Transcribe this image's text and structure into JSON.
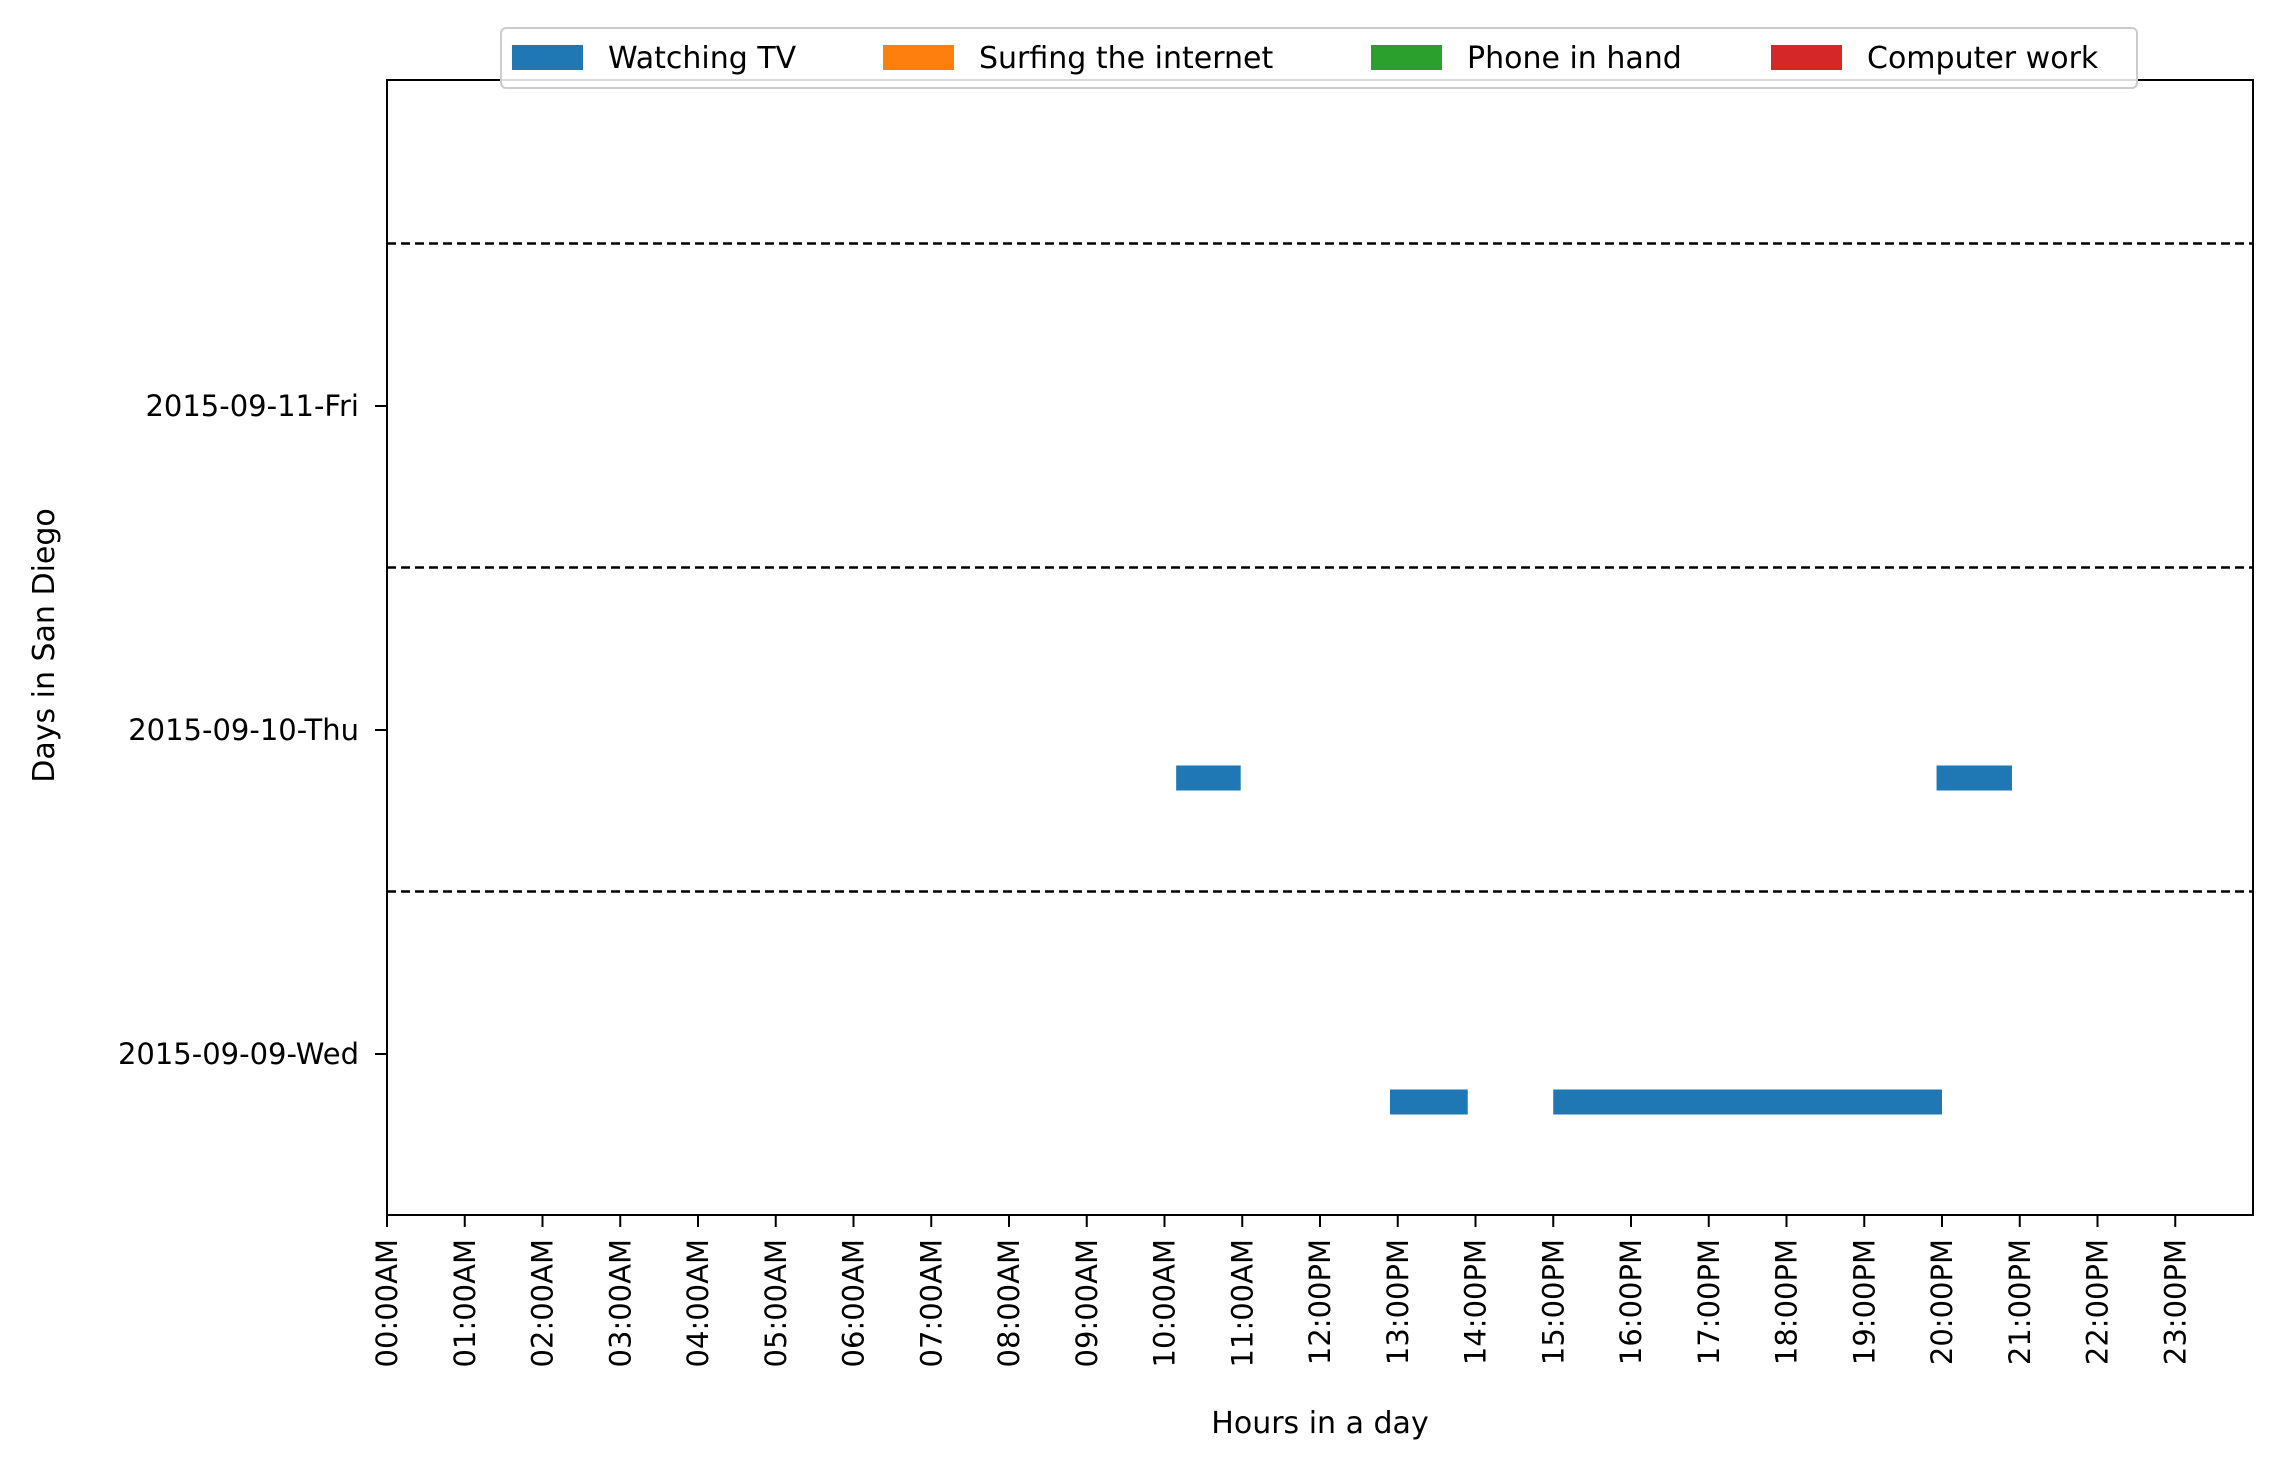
{
  "chart_data": {
    "type": "bar",
    "orientation": "horizontal-timeline",
    "title": "",
    "xlabel": "Hours in a day",
    "ylabel": "Days in San Diego",
    "xlim": [
      0,
      24
    ],
    "x_ticks": [
      "00:00AM",
      "01:00AM",
      "02:00AM",
      "03:00AM",
      "04:00AM",
      "05:00AM",
      "06:00AM",
      "07:00AM",
      "08:00AM",
      "09:00AM",
      "10:00AM",
      "11:00AM",
      "12:00PM",
      "13:00PM",
      "14:00PM",
      "15:00PM",
      "16:00PM",
      "17:00PM",
      "18:00PM",
      "19:00PM",
      "20:00PM",
      "21:00PM",
      "22:00PM",
      "23:00PM"
    ],
    "categories": [
      "2015-09-09-Wed",
      "2015-09-10-Thu",
      "2015-09-11-Fri"
    ],
    "grid": false,
    "separator_lines": "dashed between days",
    "legend_position": "top-center",
    "series": [
      {
        "name": "Watching TV",
        "color": "#1f77b4",
        "intervals": [
          {
            "day": "2015-09-09-Wed",
            "start": 12.9,
            "end": 13.9
          },
          {
            "day": "2015-09-09-Wed",
            "start": 15.0,
            "end": 20.0
          },
          {
            "day": "2015-09-10-Thu",
            "start": 10.15,
            "end": 10.98
          },
          {
            "day": "2015-09-10-Thu",
            "start": 19.93,
            "end": 20.9
          }
        ]
      },
      {
        "name": "Surfing the internet",
        "color": "#ff7f0e",
        "intervals": []
      },
      {
        "name": "Phone in hand",
        "color": "#2ca02c",
        "intervals": []
      },
      {
        "name": "Computer work",
        "color": "#d62728",
        "intervals": []
      }
    ]
  }
}
